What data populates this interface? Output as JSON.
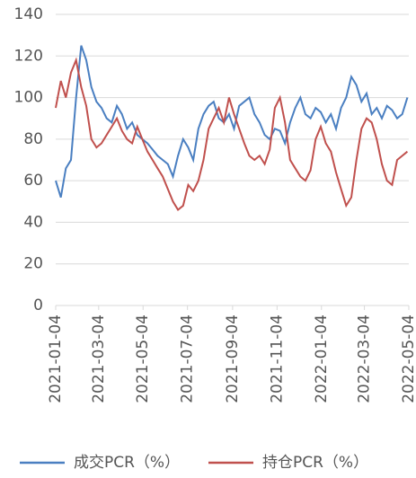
{
  "chart_data": {
    "type": "line",
    "x": [
      "2021-01-04",
      "2021-01-11",
      "2021-01-18",
      "2021-01-25",
      "2021-02-01",
      "2021-02-08",
      "2021-02-15",
      "2021-02-22",
      "2021-03-01",
      "2021-03-08",
      "2021-03-15",
      "2021-03-22",
      "2021-03-29",
      "2021-04-05",
      "2021-04-12",
      "2021-04-19",
      "2021-04-26",
      "2021-05-03",
      "2021-05-10",
      "2021-05-17",
      "2021-05-24",
      "2021-05-31",
      "2021-06-07",
      "2021-06-14",
      "2021-06-21",
      "2021-06-28",
      "2021-07-05",
      "2021-07-12",
      "2021-07-19",
      "2021-07-26",
      "2021-08-02",
      "2021-08-09",
      "2021-08-16",
      "2021-08-23",
      "2021-08-30",
      "2021-09-06",
      "2021-09-13",
      "2021-09-20",
      "2021-09-27",
      "2021-10-04",
      "2021-10-11",
      "2021-10-18",
      "2021-10-25",
      "2021-11-01",
      "2021-11-08",
      "2021-11-15",
      "2021-11-22",
      "2021-11-29",
      "2021-12-06",
      "2021-12-13",
      "2021-12-20",
      "2021-12-27",
      "2022-01-03",
      "2022-01-10",
      "2022-01-17",
      "2022-01-24",
      "2022-01-31",
      "2022-02-07",
      "2022-02-14",
      "2022-02-21",
      "2022-02-28",
      "2022-03-07",
      "2022-03-14",
      "2022-03-21",
      "2022-03-28",
      "2022-04-04",
      "2022-04-11",
      "2022-04-18",
      "2022-04-25",
      "2022-05-02"
    ],
    "series": [
      {
        "name": "成交PCR（%）",
        "color": "#4a7fc1",
        "values": [
          60,
          52,
          66,
          70,
          100,
          125,
          118,
          105,
          98,
          95,
          90,
          88,
          96,
          92,
          85,
          88,
          82,
          80,
          78,
          75,
          72,
          70,
          68,
          62,
          72,
          80,
          76,
          70,
          85,
          92,
          96,
          98,
          90,
          88,
          92,
          85,
          96,
          98,
          100,
          92,
          88,
          82,
          80,
          85,
          84,
          78,
          88,
          95,
          100,
          92,
          90,
          95,
          93,
          88,
          92,
          85,
          95,
          100,
          110,
          106,
          98,
          102,
          92,
          95,
          90,
          96,
          94,
          90,
          92,
          100
        ]
      },
      {
        "name": "持仓PCR（%）",
        "color": "#c0504d",
        "values": [
          95,
          108,
          100,
          112,
          118,
          105,
          96,
          80,
          76,
          78,
          82,
          86,
          90,
          84,
          80,
          78,
          86,
          80,
          74,
          70,
          66,
          62,
          56,
          50,
          46,
          48,
          58,
          55,
          60,
          70,
          85,
          90,
          95,
          88,
          100,
          92,
          85,
          78,
          72,
          70,
          72,
          68,
          75,
          95,
          100,
          88,
          70,
          66,
          62,
          60,
          65,
          80,
          86,
          78,
          74,
          64,
          56,
          48,
          52,
          70,
          85,
          90,
          88,
          80,
          68,
          60,
          58,
          70,
          72,
          74
        ]
      }
    ],
    "xlim": [
      "2021-01-04",
      "2022-05-04"
    ],
    "xticks": [
      "2021-01-04",
      "2021-03-04",
      "2021-05-04",
      "2021-07-04",
      "2021-09-04",
      "2021-11-04",
      "2022-01-04",
      "2022-03-04",
      "2022-05-04"
    ],
    "ylim": [
      0,
      140
    ],
    "yticks": [
      0,
      20,
      40,
      60,
      80,
      100,
      120,
      140
    ],
    "grid": true
  }
}
